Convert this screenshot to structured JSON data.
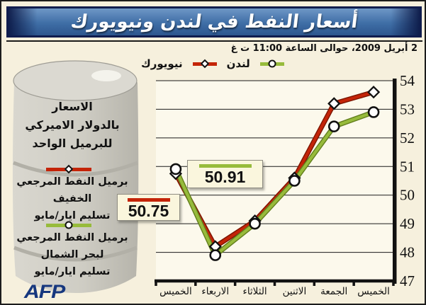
{
  "title": {
    "text": "أسعار النفط في لندن ونيويورك"
  },
  "date_line": "2 أبريل 2009، حوالى الساعة 11:00 ت غ",
  "legend": {
    "newyork_label": "نيويورك",
    "london_label": "لندن"
  },
  "sidebar": {
    "price_note_lines": [
      "الاسعار",
      "بالدولار الاميركي",
      "للبرميل الواحد"
    ],
    "newyork_note_lines": [
      "برميل النفط المرجعي الخفيف",
      "تسليم ايار/مايو"
    ],
    "london_note_lines": [
      "برميل النفط المرجعي",
      "لبحر الشمال",
      "تسليم ايار/مايو"
    ]
  },
  "callouts": {
    "london_value": "50.91",
    "newyork_value": "50.75"
  },
  "footer": {
    "logo": "AFP"
  },
  "colors": {
    "newyork_red": "#c42408",
    "newyork_red_edge": "#7c1500",
    "london_green": "#97bb3b",
    "london_green_edge": "#637f1d",
    "title_blue": "#3f6ea6",
    "background_cream": "#f6f0dd"
  },
  "chart_data": {
    "type": "line",
    "title": "أسعار النفط في لندن ونيويورك",
    "categories": [
      "الخميس",
      "الاربعاء",
      "الثلاثاء",
      "الاثنين",
      "الجمعة",
      "الخميس"
    ],
    "series": [
      {
        "name": "نيويورك",
        "marker": "diamond",
        "color": "#c42408",
        "edge": "#7c1500",
        "values": [
          50.75,
          48.2,
          49.1,
          50.6,
          53.2,
          53.6
        ]
      },
      {
        "name": "لندن",
        "marker": "circle",
        "color": "#97bb3b",
        "edge": "#637f1d",
        "values": [
          50.91,
          47.9,
          49.0,
          50.5,
          52.4,
          52.9
        ]
      }
    ],
    "ylim": [
      47,
      54
    ],
    "yticks": [
      54,
      53,
      52,
      51,
      50,
      49,
      48,
      47
    ],
    "grid": "horizontal",
    "axis_side": "right",
    "x_direction": "most recent at left"
  }
}
